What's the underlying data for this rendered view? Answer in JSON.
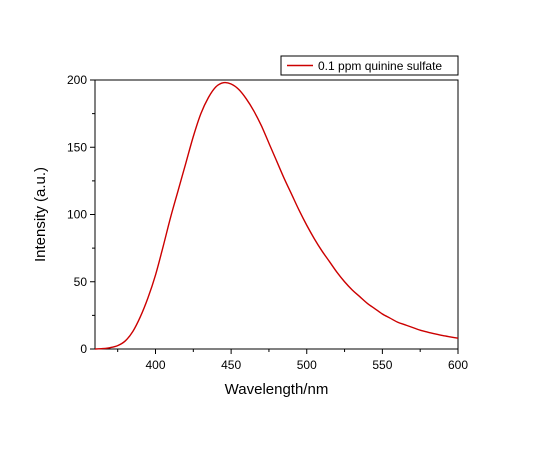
{
  "chart_data": {
    "type": "line",
    "title": "",
    "xlabel": "Wavelength/nm",
    "ylabel": "Intensity (a.u.)",
    "xlim": [
      360,
      600
    ],
    "ylim": [
      0,
      200
    ],
    "x_ticks": [
      400,
      450,
      500,
      550,
      600
    ],
    "x_tick_labels": [
      "400",
      "450",
      "500",
      "550",
      "600"
    ],
    "y_ticks": [
      0,
      50,
      100,
      150,
      200
    ],
    "y_tick_labels": [
      "0",
      "50",
      "100",
      "150",
      "200"
    ],
    "grid": false,
    "legend_position": "top-right",
    "series": [
      {
        "name": "0.1 ppm quinine sulfate",
        "color": "#cc0000",
        "x": [
          360,
          365,
          370,
          375,
          380,
          385,
          390,
          395,
          400,
          405,
          410,
          415,
          420,
          425,
          430,
          435,
          440,
          445,
          450,
          455,
          460,
          465,
          470,
          475,
          480,
          485,
          490,
          495,
          500,
          505,
          510,
          515,
          520,
          525,
          530,
          535,
          540,
          545,
          550,
          555,
          560,
          565,
          570,
          575,
          580,
          585,
          590,
          595,
          600
        ],
        "y": [
          0,
          0.3,
          1,
          2.5,
          6,
          13,
          24,
          38,
          55,
          76,
          98,
          118,
          138,
          158,
          175,
          187,
          195,
          198,
          197,
          193,
          186,
          177,
          166,
          153,
          140,
          127,
          115,
          103,
          92,
          82,
          73,
          65,
          57,
          50,
          44,
          39,
          34,
          30,
          26,
          23,
          20,
          18,
          16,
          14,
          12.5,
          11.2,
          10,
          9,
          8
        ]
      }
    ]
  }
}
